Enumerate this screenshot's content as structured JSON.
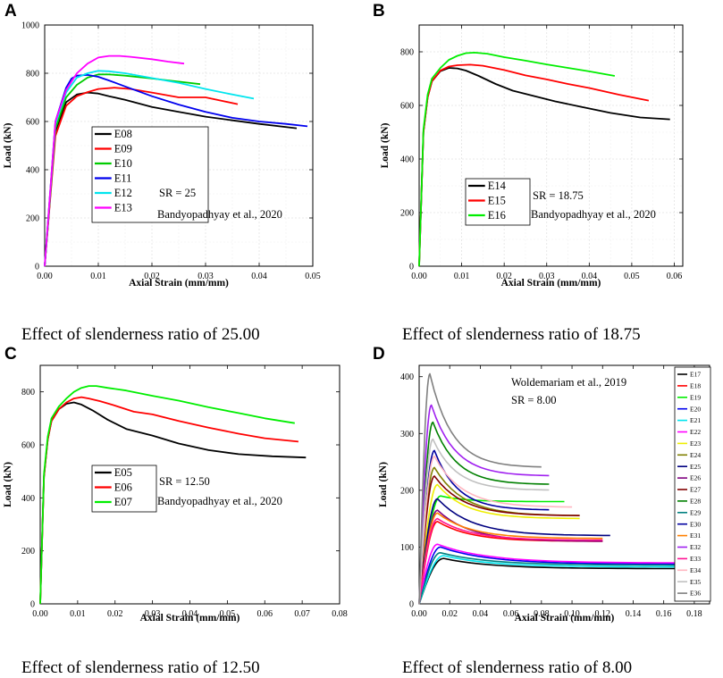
{
  "panels": [
    {
      "letter": "A",
      "caption": "Effect of slenderness ratio of 25.00"
    },
    {
      "letter": "B",
      "caption": "Effect of slenderness ratio of 18.75"
    },
    {
      "letter": "C",
      "caption": "Effect of slenderness ratio of 12.50"
    },
    {
      "letter": "D",
      "caption": "Effect of slenderness ratio of 8.00"
    }
  ],
  "chart_data": [
    {
      "type": "line",
      "title": "",
      "xlabel": "Axial Strain (mm/mm)",
      "ylabel": "Load (kN)",
      "xlim": [
        0,
        0.05
      ],
      "ylim": [
        0,
        1000
      ],
      "xticks": [
        "0.00",
        "0.01",
        "0.02",
        "0.03",
        "0.04",
        "0.05"
      ],
      "yticks": [
        "0",
        "200",
        "400",
        "600",
        "800",
        "1000"
      ],
      "xtick_values": [
        0,
        0.01,
        0.02,
        0.03,
        0.04,
        0.05
      ],
      "ytick_values": [
        0,
        200,
        400,
        600,
        800,
        1000
      ],
      "annotations": [
        "SR = 25",
        "Bandyopadhyay et al., 2020"
      ],
      "series": [
        {
          "name": "E08",
          "color": "#000000",
          "x": [
            0,
            0.002,
            0.004,
            0.006,
            0.008,
            0.01,
            0.012,
            0.015,
            0.02,
            0.025,
            0.03,
            0.035,
            0.04,
            0.047
          ],
          "y": [
            0,
            560,
            680,
            712,
            720,
            716,
            705,
            690,
            660,
            640,
            620,
            605,
            590,
            572
          ]
        },
        {
          "name": "E09",
          "color": "#ff0000",
          "x": [
            0,
            0.002,
            0.004,
            0.006,
            0.008,
            0.01,
            0.013,
            0.016,
            0.02,
            0.025,
            0.03,
            0.036
          ],
          "y": [
            0,
            540,
            665,
            705,
            722,
            735,
            740,
            735,
            720,
            700,
            700,
            672
          ]
        },
        {
          "name": "E10",
          "color": "#00cc00",
          "x": [
            0,
            0.002,
            0.004,
            0.006,
            0.008,
            0.01,
            0.012,
            0.015,
            0.02,
            0.025,
            0.029
          ],
          "y": [
            0,
            570,
            700,
            752,
            782,
            795,
            795,
            790,
            778,
            765,
            755
          ]
        },
        {
          "name": "E11",
          "color": "#0000ee",
          "x": [
            0,
            0.002,
            0.004,
            0.005,
            0.006,
            0.008,
            0.01,
            0.012,
            0.015,
            0.02,
            0.025,
            0.03,
            0.035,
            0.04,
            0.045,
            0.049
          ],
          "y": [
            0,
            600,
            740,
            778,
            790,
            793,
            785,
            770,
            745,
            705,
            670,
            640,
            615,
            600,
            590,
            580
          ]
        },
        {
          "name": "E12",
          "color": "#00e5ee",
          "x": [
            0,
            0.002,
            0.004,
            0.006,
            0.008,
            0.01,
            0.012,
            0.015,
            0.02,
            0.025,
            0.03,
            0.035,
            0.039
          ],
          "y": [
            0,
            590,
            720,
            782,
            800,
            810,
            808,
            800,
            780,
            760,
            735,
            712,
            695
          ]
        },
        {
          "name": "E13",
          "color": "#ff00ff",
          "x": [
            0,
            0.002,
            0.004,
            0.006,
            0.008,
            0.01,
            0.012,
            0.014,
            0.016,
            0.02,
            0.023,
            0.026
          ],
          "y": [
            0,
            600,
            730,
            800,
            840,
            865,
            872,
            872,
            868,
            858,
            848,
            840
          ]
        }
      ]
    },
    {
      "type": "line",
      "title": "",
      "xlabel": "Axial Strain (mm/mm)",
      "ylabel": "Load (kN)",
      "xlim": [
        0,
        0.062
      ],
      "ylim": [
        0,
        900
      ],
      "xticks": [
        "0.00",
        "0.01",
        "0.02",
        "0.03",
        "0.04",
        "0.05",
        "0.06"
      ],
      "yticks": [
        "0",
        "200",
        "400",
        "600",
        "800"
      ],
      "xtick_values": [
        0,
        0.01,
        0.02,
        0.03,
        0.04,
        0.05,
        0.06
      ],
      "ytick_values": [
        0,
        200,
        400,
        600,
        800
      ],
      "annotations": [
        "SR = 18.75",
        "Bandyopadhyay et al., 2020"
      ],
      "series": [
        {
          "name": "E14",
          "color": "#000000",
          "x": [
            0,
            0.001,
            0.002,
            0.003,
            0.005,
            0.007,
            0.009,
            0.011,
            0.014,
            0.018,
            0.022,
            0.027,
            0.032,
            0.038,
            0.045,
            0.052,
            0.059
          ],
          "y": [
            0,
            500,
            630,
            690,
            728,
            740,
            738,
            730,
            710,
            680,
            655,
            635,
            615,
            595,
            572,
            555,
            548
          ]
        },
        {
          "name": "E15",
          "color": "#ff0000",
          "x": [
            0,
            0.001,
            0.002,
            0.003,
            0.005,
            0.007,
            0.009,
            0.012,
            0.015,
            0.02,
            0.025,
            0.03,
            0.035,
            0.04,
            0.047,
            0.054
          ],
          "y": [
            0,
            500,
            630,
            690,
            730,
            745,
            750,
            752,
            748,
            732,
            712,
            697,
            680,
            665,
            640,
            618
          ]
        },
        {
          "name": "E16",
          "color": "#00ee00",
          "x": [
            0,
            0.001,
            0.002,
            0.003,
            0.005,
            0.007,
            0.009,
            0.011,
            0.013,
            0.016,
            0.02,
            0.025,
            0.03,
            0.035,
            0.04,
            0.046
          ],
          "y": [
            0,
            510,
            640,
            700,
            740,
            770,
            785,
            795,
            797,
            793,
            780,
            767,
            753,
            740,
            727,
            710
          ]
        }
      ]
    },
    {
      "type": "line",
      "title": "",
      "xlabel": "Axial Strain (mm/mm)",
      "ylabel": "Load (kN)",
      "xlim": [
        0,
        0.08
      ],
      "ylim": [
        0,
        900
      ],
      "xticks": [
        "0.00",
        "0.01",
        "0.02",
        "0.03",
        "0.04",
        "0.05",
        "0.06",
        "0.07",
        "0.08"
      ],
      "yticks": [
        "0",
        "200",
        "400",
        "600",
        "800"
      ],
      "xtick_values": [
        0,
        0.01,
        0.02,
        0.03,
        0.04,
        0.05,
        0.06,
        0.07,
        0.08
      ],
      "ytick_values": [
        0,
        200,
        400,
        600,
        800
      ],
      "annotations": [
        "SR = 12.50",
        "Bandyopadhyay et al., 2020"
      ],
      "series": [
        {
          "name": "E05",
          "color": "#000000",
          "x": [
            0,
            0.001,
            0.002,
            0.003,
            0.005,
            0.007,
            0.009,
            0.011,
            0.014,
            0.018,
            0.023,
            0.03,
            0.037,
            0.045,
            0.053,
            0.062,
            0.071
          ],
          "y": [
            0,
            480,
            620,
            690,
            735,
            755,
            760,
            752,
            730,
            695,
            660,
            635,
            605,
            580,
            565,
            557,
            552
          ]
        },
        {
          "name": "E06",
          "color": "#ff0000",
          "x": [
            0,
            0.001,
            0.002,
            0.003,
            0.005,
            0.007,
            0.009,
            0.011,
            0.013,
            0.016,
            0.02,
            0.025,
            0.03,
            0.037,
            0.045,
            0.053,
            0.06,
            0.069
          ],
          "y": [
            0,
            480,
            620,
            690,
            735,
            760,
            775,
            780,
            775,
            765,
            748,
            725,
            715,
            690,
            665,
            642,
            625,
            612
          ]
        },
        {
          "name": "E07",
          "color": "#00ee00",
          "x": [
            0,
            0.001,
            0.002,
            0.003,
            0.005,
            0.007,
            0.009,
            0.011,
            0.013,
            0.015,
            0.018,
            0.023,
            0.03,
            0.037,
            0.045,
            0.053,
            0.06,
            0.068
          ],
          "y": [
            0,
            490,
            630,
            700,
            745,
            775,
            800,
            815,
            822,
            822,
            815,
            805,
            785,
            767,
            742,
            720,
            700,
            682
          ]
        }
      ]
    },
    {
      "type": "line",
      "title": "",
      "xlabel": "Axial Strain (mm/mm)",
      "ylabel": "Load (kN)",
      "xlim": [
        0,
        0.19
      ],
      "ylim": [
        0,
        420
      ],
      "xticks": [
        "0.00",
        "0.02",
        "0.04",
        "0.06",
        "0.08",
        "0.10",
        "0.12",
        "0.14",
        "0.16",
        "0.18"
      ],
      "yticks": [
        "0",
        "100",
        "200",
        "300",
        "400"
      ],
      "xtick_values": [
        0,
        0.02,
        0.04,
        0.06,
        0.08,
        0.1,
        0.12,
        0.14,
        0.16,
        0.18
      ],
      "ytick_values": [
        0,
        100,
        200,
        300,
        400
      ],
      "annotations": [
        "Woldemariam et al., 2019",
        "SR = 8.00"
      ],
      "series": [
        {
          "name": "E17",
          "color": "#000000",
          "peak": 80,
          "end": 62,
          "xend": 0.172,
          "xpeak": 0.016
        },
        {
          "name": "E18",
          "color": "#ff0000",
          "peak": 145,
          "end": 110,
          "xend": 0.12,
          "xpeak": 0.012
        },
        {
          "name": "E19",
          "color": "#00ee00",
          "peak": 190,
          "end": 180,
          "xend": 0.095,
          "xpeak": 0.014
        },
        {
          "name": "E20",
          "color": "#0000ee",
          "peak": 100,
          "end": 70,
          "xend": 0.172,
          "xpeak": 0.014
        },
        {
          "name": "E21",
          "color": "#00e5ee",
          "peak": 85,
          "end": 65,
          "xend": 0.17,
          "xpeak": 0.016
        },
        {
          "name": "E22",
          "color": "#ff00ff",
          "peak": 105,
          "end": 72,
          "xend": 0.175,
          "xpeak": 0.012
        },
        {
          "name": "E23",
          "color": "#eeee00",
          "peak": 210,
          "end": 150,
          "xend": 0.105,
          "xpeak": 0.012
        },
        {
          "name": "E24",
          "color": "#808000",
          "peak": 240,
          "end": 155,
          "xend": 0.105,
          "xpeak": 0.01
        },
        {
          "name": "E25",
          "color": "#000080",
          "peak": 185,
          "end": 120,
          "xend": 0.125,
          "xpeak": 0.012
        },
        {
          "name": "E26",
          "color": "#800080",
          "peak": 165,
          "end": 110,
          "xend": 0.12,
          "xpeak": 0.012
        },
        {
          "name": "E27",
          "color": "#800000",
          "peak": 225,
          "end": 155,
          "xend": 0.105,
          "xpeak": 0.01
        },
        {
          "name": "E28",
          "color": "#008000",
          "peak": 320,
          "end": 210,
          "xend": 0.085,
          "xpeak": 0.009
        },
        {
          "name": "E29",
          "color": "#008080",
          "peak": 90,
          "end": 68,
          "xend": 0.172,
          "xpeak": 0.014
        },
        {
          "name": "E30",
          "color": "#0000a0",
          "peak": 270,
          "end": 165,
          "xend": 0.085,
          "xpeak": 0.01
        },
        {
          "name": "E31",
          "color": "#ff8000",
          "peak": 160,
          "end": 115,
          "xend": 0.12,
          "xpeak": 0.012
        },
        {
          "name": "E32",
          "color": "#a020f0",
          "peak": 350,
          "end": 225,
          "xend": 0.085,
          "xpeak": 0.008
        },
        {
          "name": "E33",
          "color": "#ff1493",
          "peak": 150,
          "end": 112,
          "xend": 0.12,
          "xpeak": 0.012
        },
        {
          "name": "E34",
          "color": "#ffb6c1",
          "peak": 260,
          "end": 170,
          "xend": 0.1,
          "xpeak": 0.01
        },
        {
          "name": "E35",
          "color": "#c0c0c0",
          "peak": 290,
          "end": 200,
          "xend": 0.085,
          "xpeak": 0.009
        },
        {
          "name": "E36",
          "color": "#808080",
          "peak": 405,
          "end": 240,
          "xend": 0.08,
          "xpeak": 0.007
        }
      ]
    }
  ]
}
